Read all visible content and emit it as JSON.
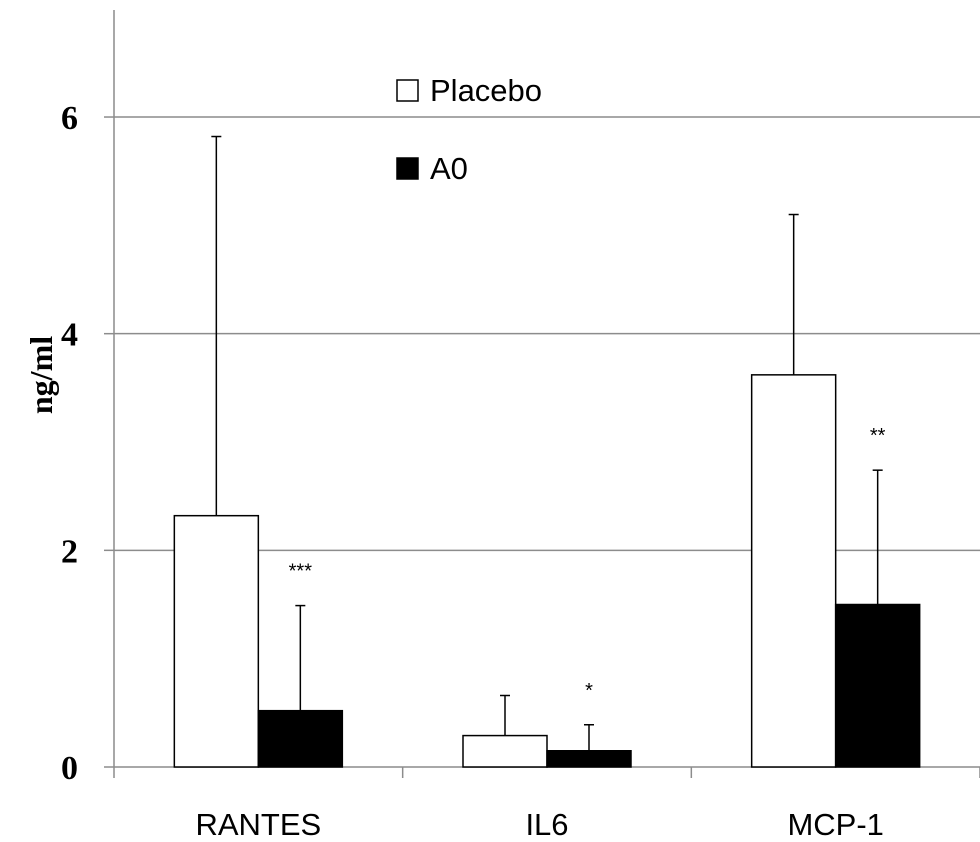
{
  "chart_data": {
    "type": "bar",
    "categories": [
      "RANTES",
      "IL6",
      "MCP-1"
    ],
    "series": [
      {
        "name": "Placebo",
        "values": [
          2.32,
          0.29,
          3.62
        ],
        "error": [
          3.5,
          0.37,
          1.48
        ],
        "fill": "#ffffff",
        "stroke": "#000000"
      },
      {
        "name": "A0",
        "values": [
          0.52,
          0.15,
          1.5
        ],
        "error": [
          0.97,
          0.24,
          1.24
        ],
        "fill": "#000000",
        "stroke": "#000000"
      }
    ],
    "significance": [
      "***",
      "*",
      "**"
    ],
    "ylabel": "ng/ml",
    "xlabel": "",
    "title": "",
    "ylim": [
      0,
      7
    ],
    "yticks": [
      "0",
      "2",
      "4",
      "6"
    ],
    "grid": true,
    "legend_position": "top-center"
  }
}
